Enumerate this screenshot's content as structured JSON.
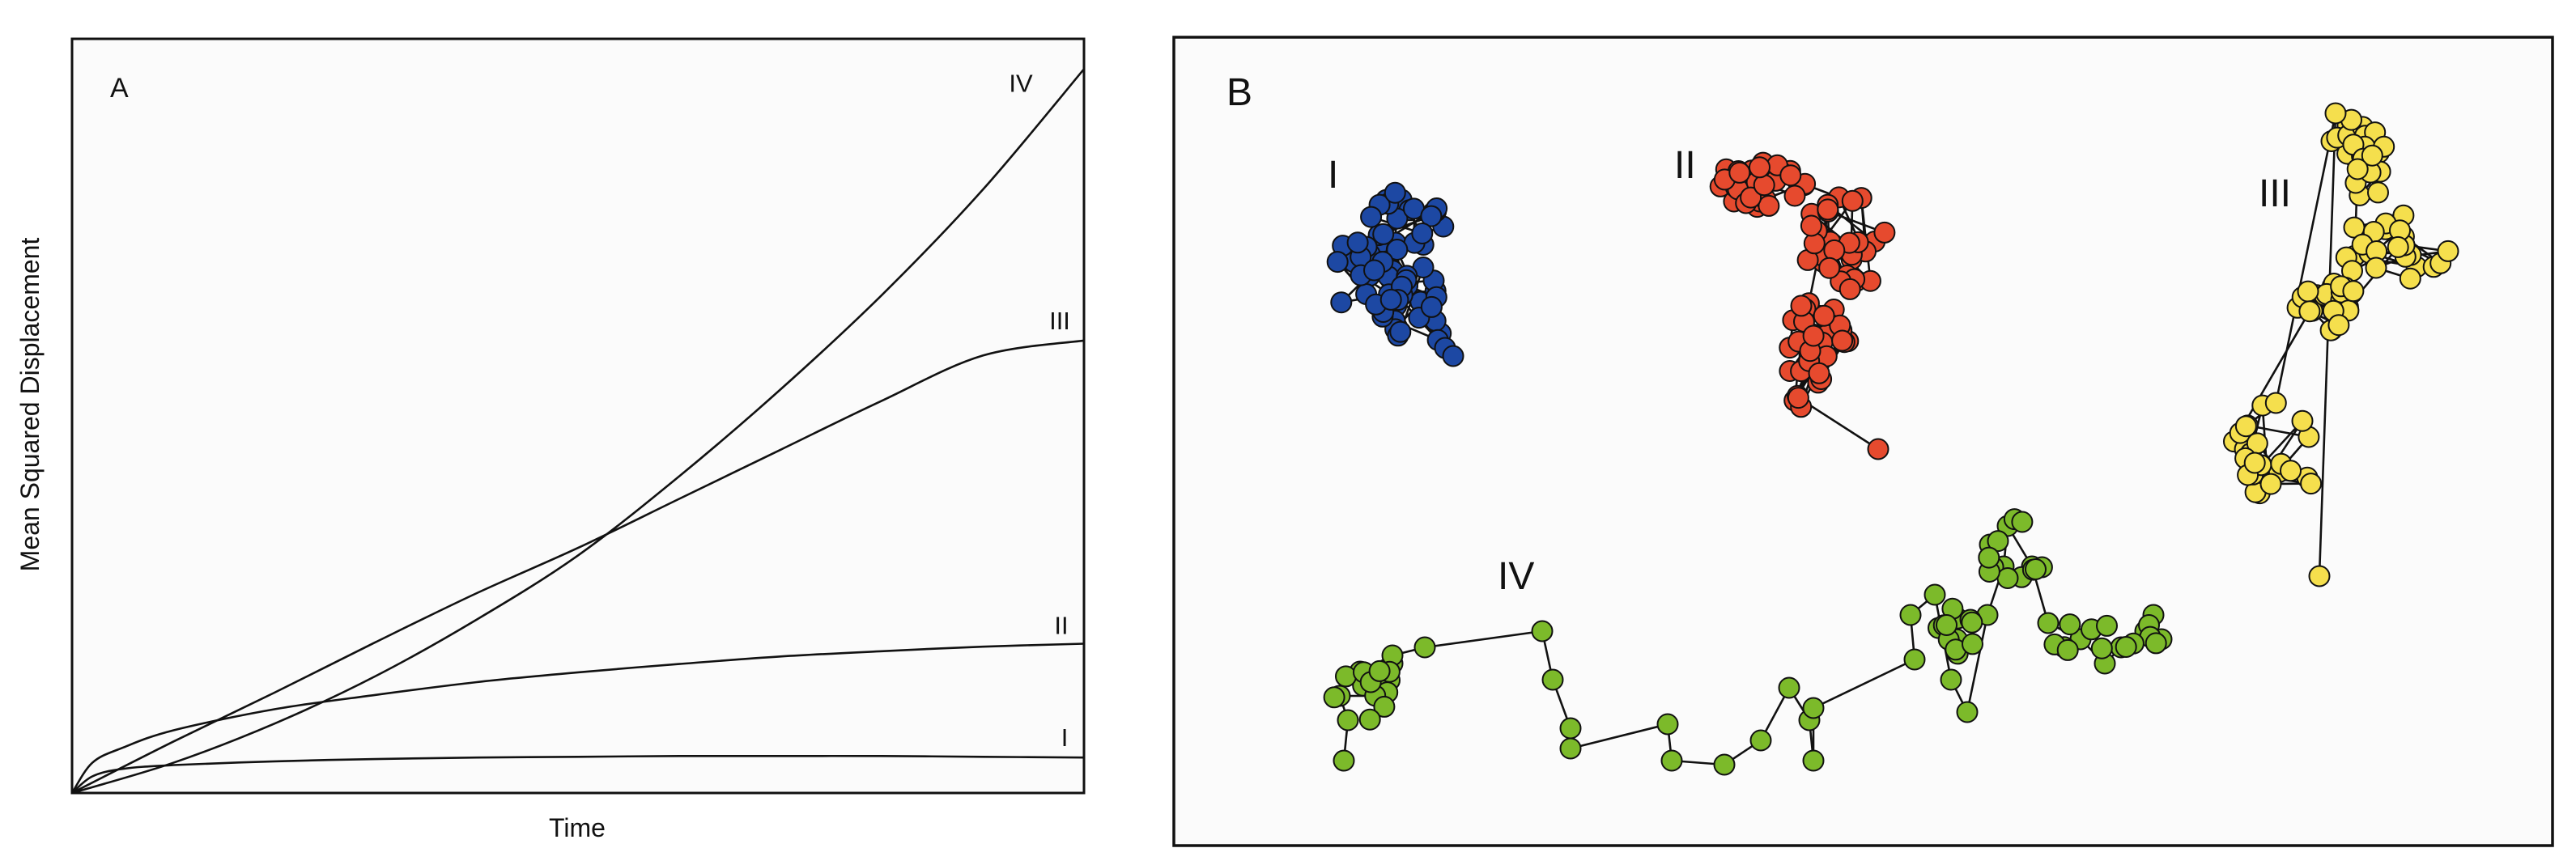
{
  "chart_data": [
    {
      "type": "line",
      "panel_letter": "A",
      "xlabel": "Time",
      "ylabel": "Mean Squared Displacement",
      "xlim": [
        0,
        1
      ],
      "ylim": [
        0,
        1
      ],
      "grid": false,
      "tick_labels": false,
      "series": [
        {
          "name": "I",
          "x": [
            0,
            0.02,
            0.05,
            0.1,
            0.2,
            0.3,
            0.4,
            0.5,
            0.6,
            0.7,
            0.8,
            0.9,
            1.0
          ],
          "values": [
            0,
            0.022,
            0.032,
            0.037,
            0.042,
            0.045,
            0.047,
            0.048,
            0.049,
            0.049,
            0.049,
            0.048,
            0.047
          ]
        },
        {
          "name": "II",
          "x": [
            0,
            0.02,
            0.05,
            0.1,
            0.2,
            0.3,
            0.4,
            0.5,
            0.6,
            0.7,
            0.8,
            0.9,
            1.0
          ],
          "values": [
            0,
            0.04,
            0.06,
            0.083,
            0.111,
            0.13,
            0.147,
            0.16,
            0.171,
            0.181,
            0.188,
            0.194,
            0.198
          ]
        },
        {
          "name": "III",
          "x": [
            0,
            0.1,
            0.2,
            0.3,
            0.4,
            0.5,
            0.6,
            0.7,
            0.8,
            0.9,
            1.0
          ],
          "values": [
            0,
            0.068,
            0.133,
            0.2,
            0.265,
            0.325,
            0.39,
            0.455,
            0.52,
            0.58,
            0.6
          ]
        },
        {
          "name": "IV",
          "x": [
            0,
            0.1,
            0.2,
            0.3,
            0.4,
            0.5,
            0.6,
            0.7,
            0.8,
            0.9,
            1.0
          ],
          "values": [
            0,
            0.04,
            0.092,
            0.155,
            0.23,
            0.315,
            0.42,
            0.535,
            0.66,
            0.8,
            0.96
          ]
        }
      ]
    },
    {
      "type": "diagram",
      "panel_letter": "B",
      "trajectories": [
        {
          "name": "I",
          "color": "#1d48a3",
          "spread": "tight"
        },
        {
          "name": "II",
          "color": "#e64a2e",
          "spread": "compact"
        },
        {
          "name": "III",
          "color": "#f5df4d",
          "spread": "wide"
        },
        {
          "name": "IV",
          "color": "#7cba2a",
          "spread": "directed"
        }
      ]
    }
  ]
}
